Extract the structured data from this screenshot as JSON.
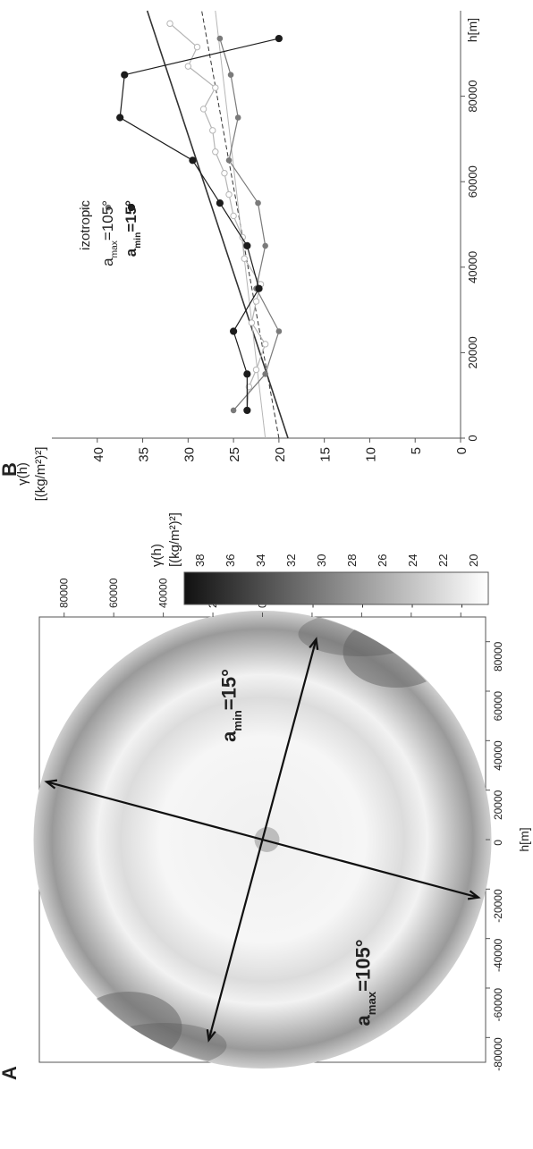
{
  "colors": {
    "isotropic": "#b5b5b5",
    "amax": "#7a7a7a",
    "amin": "#1c1c1c",
    "trend": "#333333",
    "axis": "#555555",
    "text": "#222222"
  },
  "chart_data": [
    {
      "type": "heatmap",
      "panel_label": "A",
      "description_shape": "circular variogram map",
      "xlabel": "h[m]",
      "x_ticks": [
        "-80000",
        "-60000",
        "-40000",
        "-20000",
        "0",
        "20000",
        "40000",
        "60000",
        "80000"
      ],
      "y_ticks": [
        "80000",
        "60000",
        "40000",
        "20000",
        "0",
        "-20000",
        "-40000",
        "-60000",
        "-80000"
      ],
      "xlim": [
        -90000,
        90000
      ],
      "ylim": [
        -90000,
        90000
      ],
      "colorbar": {
        "label_line1": "γ(h)",
        "label_line2": "[(kg/m²)²]",
        "ticks": [
          "20",
          "22",
          "24",
          "26",
          "28",
          "30",
          "32",
          "34",
          "36",
          "38"
        ],
        "range": [
          19,
          39
        ]
      },
      "annotations": [
        {
          "prefix": "a",
          "sub": "max",
          "suffix": "=105°",
          "direction_deg": 105
        },
        {
          "prefix": "a",
          "sub": "min",
          "suffix": "=15°",
          "direction_deg": 15
        }
      ]
    },
    {
      "type": "line",
      "panel_label": "B",
      "xlabel": "h[m]",
      "ylabel_line1": "γ(h)",
      "ylabel_line2": "[(kg/m²)²]",
      "x_ticks": [
        "0",
        "20000",
        "40000",
        "60000",
        "80000"
      ],
      "y_ticks": [
        "0",
        "5",
        "10",
        "15",
        "20",
        "25",
        "30",
        "35",
        "40"
      ],
      "xlim": [
        0,
        100000
      ],
      "ylim": [
        0,
        45
      ],
      "legend_position": "top-left",
      "series": [
        {
          "name": "izotropic",
          "x": [
            6500,
            12000,
            16000,
            22000,
            27000,
            32000,
            36000,
            42000,
            47000,
            52000,
            57000,
            62000,
            67000,
            72000,
            77000,
            82000,
            87000,
            91500,
            97000
          ],
          "y": [
            23.5,
            23.3,
            22.5,
            21.5,
            23.0,
            22.5,
            22.0,
            23.8,
            24.0,
            25.0,
            25.5,
            26.0,
            27.0,
            27.3,
            28.3,
            27.0,
            30.0,
            29.0,
            32.0
          ]
        },
        {
          "name": "a_max=105°",
          "x": [
            6500,
            15000,
            25000,
            35000,
            45000,
            55000,
            65000,
            75000,
            85000,
            93500
          ],
          "y": [
            25.0,
            21.5,
            20.0,
            22.5,
            21.5,
            22.3,
            25.5,
            24.5,
            25.3,
            26.5
          ]
        },
        {
          "name": "a_min=15°",
          "x": [
            6500,
            15000,
            25000,
            35000,
            45000,
            55000,
            65000,
            75000,
            85000,
            93500
          ],
          "y": [
            23.5,
            23.5,
            25.0,
            22.2,
            23.5,
            26.5,
            29.5,
            37.5,
            37.0,
            20.0
          ]
        }
      ],
      "trend_lines": [
        {
          "x": [
            0,
            100000
          ],
          "y": [
            19.0,
            34.5
          ],
          "style": "solid"
        },
        {
          "x": [
            0,
            100000
          ],
          "y": [
            20.0,
            28.5
          ],
          "style": "dashed"
        },
        {
          "x": [
            0,
            100000
          ],
          "y": [
            21.5,
            27.0
          ],
          "style": "thin-solid"
        }
      ],
      "legend": [
        {
          "prefix": "izotropic",
          "sub": "",
          "suffix": ""
        },
        {
          "prefix": "a",
          "sub": "max",
          "suffix": "=105°"
        },
        {
          "prefix": "a",
          "sub": "min",
          "suffix": "=15°"
        }
      ]
    }
  ]
}
